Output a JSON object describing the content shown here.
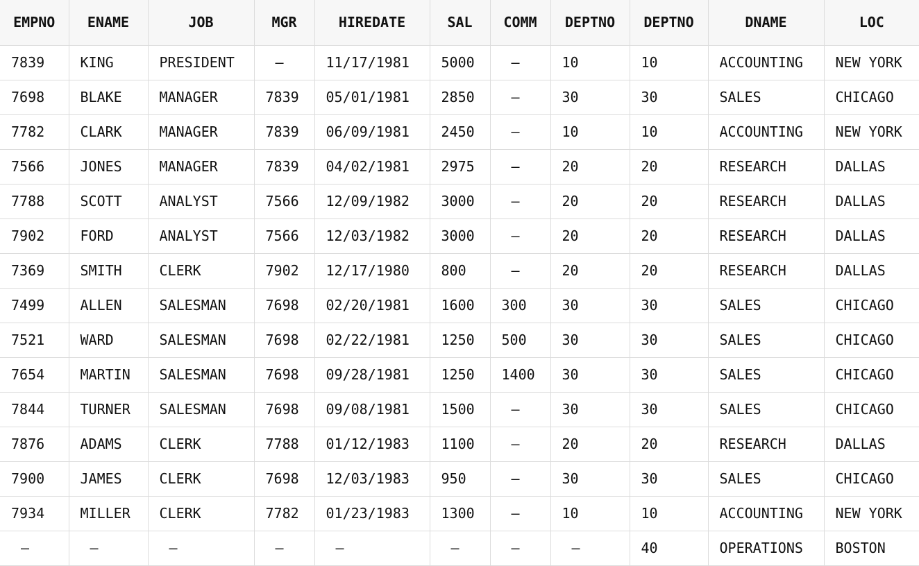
{
  "table": {
    "headers": [
      "EMPNO",
      "ENAME",
      "JOB",
      "MGR",
      "HIREDATE",
      "SAL",
      "COMM",
      "DEPTNO",
      "DEPTNO",
      "DNAME",
      "LOC"
    ],
    "rows": [
      [
        "7839",
        "KING",
        "PRESIDENT",
        "–",
        "11/17/1981",
        "5000",
        "–",
        "10",
        "10",
        "ACCOUNTING",
        "NEW YORK"
      ],
      [
        "7698",
        "BLAKE",
        "MANAGER",
        "7839",
        "05/01/1981",
        "2850",
        "–",
        "30",
        "30",
        "SALES",
        "CHICAGO"
      ],
      [
        "7782",
        "CLARK",
        "MANAGER",
        "7839",
        "06/09/1981",
        "2450",
        "–",
        "10",
        "10",
        "ACCOUNTING",
        "NEW YORK"
      ],
      [
        "7566",
        "JONES",
        "MANAGER",
        "7839",
        "04/02/1981",
        "2975",
        "–",
        "20",
        "20",
        "RESEARCH",
        "DALLAS"
      ],
      [
        "7788",
        "SCOTT",
        "ANALYST",
        "7566",
        "12/09/1982",
        "3000",
        "–",
        "20",
        "20",
        "RESEARCH",
        "DALLAS"
      ],
      [
        "7902",
        "FORD",
        "ANALYST",
        "7566",
        "12/03/1982",
        "3000",
        "–",
        "20",
        "20",
        "RESEARCH",
        "DALLAS"
      ],
      [
        "7369",
        "SMITH",
        "CLERK",
        "7902",
        "12/17/1980",
        "800",
        "–",
        "20",
        "20",
        "RESEARCH",
        "DALLAS"
      ],
      [
        "7499",
        "ALLEN",
        "SALESMAN",
        "7698",
        "02/20/1981",
        "1600",
        "300",
        "30",
        "30",
        "SALES",
        "CHICAGO"
      ],
      [
        "7521",
        "WARD",
        "SALESMAN",
        "7698",
        "02/22/1981",
        "1250",
        "500",
        "30",
        "30",
        "SALES",
        "CHICAGO"
      ],
      [
        "7654",
        "MARTIN",
        "SALESMAN",
        "7698",
        "09/28/1981",
        "1250",
        "1400",
        "30",
        "30",
        "SALES",
        "CHICAGO"
      ],
      [
        "7844",
        "TURNER",
        "SALESMAN",
        "7698",
        "09/08/1981",
        "1500",
        "–",
        "30",
        "30",
        "SALES",
        "CHICAGO"
      ],
      [
        "7876",
        "ADAMS",
        "CLERK",
        "7788",
        "01/12/1983",
        "1100",
        "–",
        "20",
        "20",
        "RESEARCH",
        "DALLAS"
      ],
      [
        "7900",
        "JAMES",
        "CLERK",
        "7698",
        "12/03/1983",
        "950",
        "–",
        "30",
        "30",
        "SALES",
        "CHICAGO"
      ],
      [
        "7934",
        "MILLER",
        "CLERK",
        "7782",
        "01/23/1983",
        "1300",
        "–",
        "10",
        "10",
        "ACCOUNTING",
        "NEW YORK"
      ],
      [
        "–",
        "–",
        "–",
        "–",
        "–",
        "–",
        "–",
        "–",
        "40",
        "OPERATIONS",
        "BOSTON"
      ]
    ]
  }
}
